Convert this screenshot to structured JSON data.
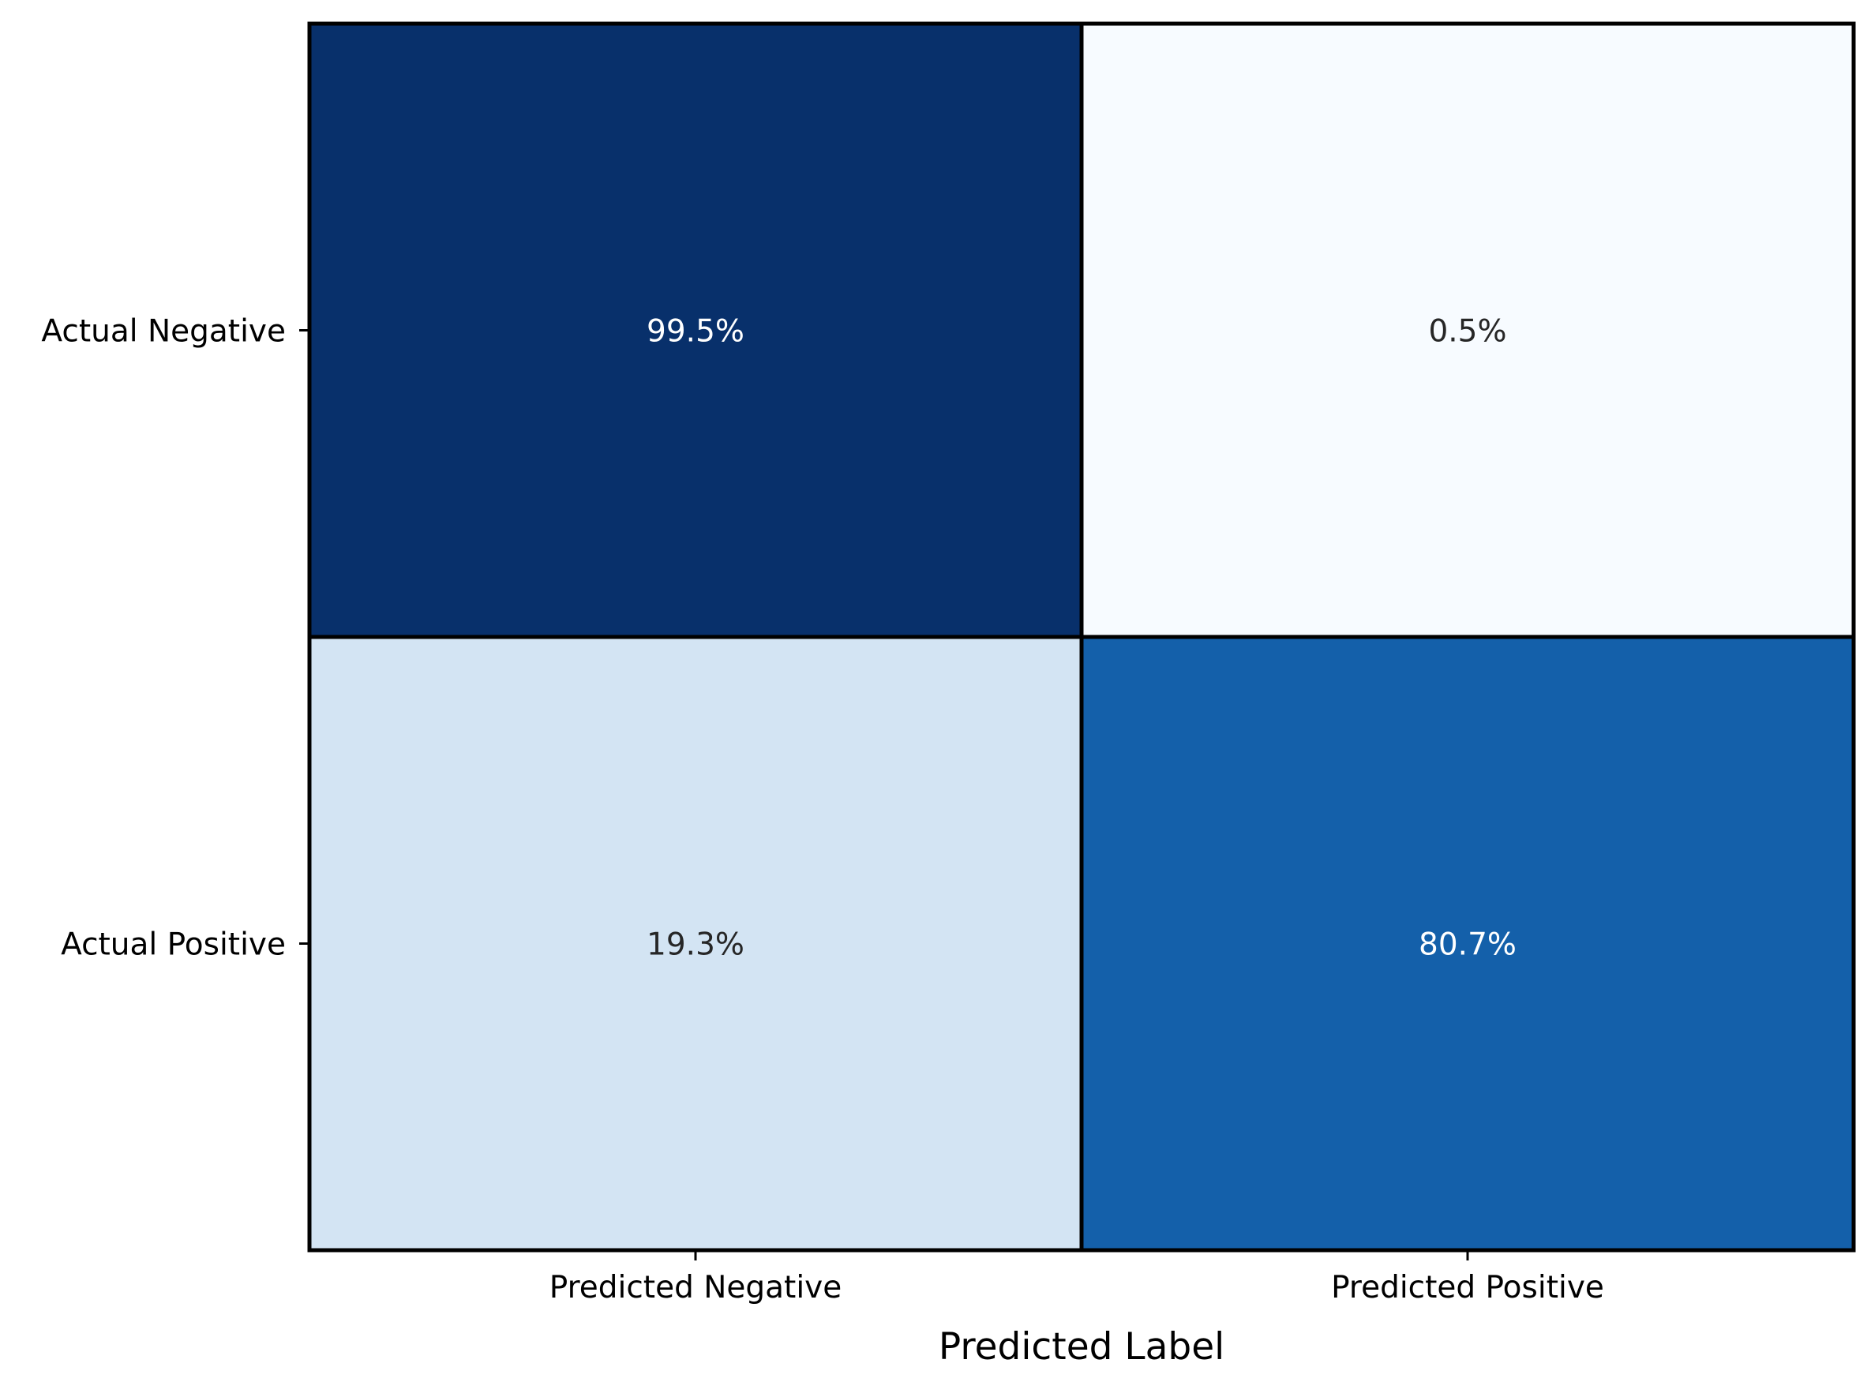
{
  "chart_data": {
    "type": "heatmap",
    "title": "",
    "xlabel": "Predicted Label",
    "ylabel": "",
    "x_categories": [
      "Predicted Negative",
      "Predicted Positive"
    ],
    "y_categories": [
      "Actual Negative",
      "Actual Positive"
    ],
    "values": [
      [
        99.5,
        0.5
      ],
      [
        19.3,
        80.7
      ]
    ],
    "cell_labels": [
      [
        "99.5%",
        "0.5%"
      ],
      [
        "19.3%",
        "80.7%"
      ]
    ],
    "value_range": [
      0,
      100
    ],
    "colormap": "Blues",
    "cell_colors": [
      [
        "#08306b",
        "#f7fbff"
      ],
      [
        "#d3e4f3",
        "#1460aa"
      ]
    ],
    "cell_text_colors": [
      [
        "#ffffff",
        "#262626"
      ],
      [
        "#262626",
        "#ffffff"
      ]
    ],
    "grid": false,
    "legend": "none"
  }
}
